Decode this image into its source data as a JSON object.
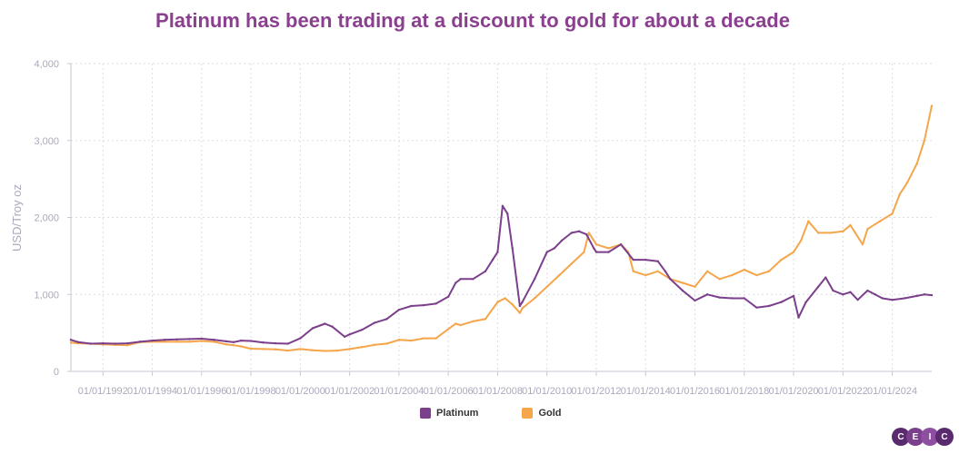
{
  "chart_data": {
    "type": "line",
    "title": "Platinum has been trading at a discount to gold for about a decade",
    "title_color": "#8B3F8F",
    "xlabel": "",
    "ylabel": "USD/Troy oz",
    "ylim": [
      0,
      4000
    ],
    "yticks": [
      0,
      1000,
      2000,
      3000,
      4000
    ],
    "ytick_labels": [
      "0",
      "1,000",
      "2,000",
      "3,000",
      "4,000"
    ],
    "xlim": [
      1990.7,
      2025.6
    ],
    "xticks": [
      1992,
      1994,
      1996,
      1998,
      2000,
      2002,
      2004,
      2006,
      2008,
      2010,
      2012,
      2014,
      2016,
      2018,
      2020,
      2022,
      2024
    ],
    "xtick_labels": [
      "01/01/1992",
      "01/01/1994",
      "01/01/1996",
      "01/01/1998",
      "01/01/2000",
      "01/01/2002",
      "01/01/2004",
      "01/01/2006",
      "01/01/2008",
      "01/01/2010",
      "01/01/2012",
      "01/01/2014",
      "01/01/2016",
      "01/01/2018",
      "01/01/2020",
      "01/01/2022",
      "01/01/2024"
    ],
    "grid": true,
    "series": [
      {
        "name": "Platinum",
        "color": "#7B3F8C",
        "x": [
          1990.7,
          1991.0,
          1991.5,
          1992.0,
          1992.5,
          1993.0,
          1993.5,
          1994.0,
          1994.5,
          1995.0,
          1995.5,
          1996.0,
          1996.5,
          1997.0,
          1997.3,
          1997.6,
          1998.0,
          1998.5,
          1999.0,
          1999.5,
          2000.0,
          2000.5,
          2001.0,
          2001.3,
          2001.8,
          2002.0,
          2002.5,
          2003.0,
          2003.5,
          2004.0,
          2004.5,
          2005.0,
          2005.5,
          2006.0,
          2006.3,
          2006.5,
          2007.0,
          2007.5,
          2007.8,
          2008.0,
          2008.2,
          2008.4,
          2008.6,
          2008.9,
          2009.0,
          2009.5,
          2010.0,
          2010.3,
          2010.6,
          2011.0,
          2011.3,
          2011.6,
          2011.9,
          2012.0,
          2012.5,
          2013.0,
          2013.5,
          2014.0,
          2014.5,
          2014.8,
          2015.0,
          2015.5,
          2016.0,
          2016.5,
          2017.0,
          2017.5,
          2018.0,
          2018.5,
          2019.0,
          2019.5,
          2020.0,
          2020.2,
          2020.5,
          2021.0,
          2021.3,
          2021.6,
          2022.0,
          2022.3,
          2022.6,
          2023.0,
          2023.3,
          2023.6,
          2024.0,
          2024.5,
          2025.0,
          2025.3,
          2025.6
        ],
        "values": [
          410,
          380,
          360,
          365,
          360,
          365,
          385,
          400,
          410,
          415,
          420,
          425,
          410,
          390,
          380,
          400,
          395,
          375,
          365,
          360,
          430,
          560,
          620,
          580,
          450,
          480,
          540,
          630,
          680,
          800,
          850,
          860,
          880,
          970,
          1150,
          1200,
          1200,
          1300,
          1450,
          1550,
          2150,
          2050,
          1600,
          850,
          900,
          1200,
          1550,
          1600,
          1700,
          1800,
          1820,
          1780,
          1600,
          1550,
          1550,
          1650,
          1450,
          1450,
          1430,
          1300,
          1200,
          1050,
          920,
          1000,
          960,
          950,
          950,
          830,
          850,
          900,
          980,
          700,
          900,
          1100,
          1220,
          1050,
          1000,
          1030,
          930,
          1050,
          1000,
          950,
          930,
          950,
          980,
          1000,
          990
        ]
      },
      {
        "name": "Gold",
        "color": "#F5A54A",
        "x": [
          1990.7,
          1991.0,
          1991.5,
          1992.0,
          1992.5,
          1993.0,
          1993.5,
          1994.0,
          1994.5,
          1995.0,
          1995.5,
          1996.0,
          1996.5,
          1997.0,
          1997.3,
          1997.6,
          1998.0,
          1998.5,
          1999.0,
          1999.5,
          2000.0,
          2000.5,
          2001.0,
          2001.5,
          2002.0,
          2002.5,
          2003.0,
          2003.5,
          2004.0,
          2004.5,
          2005.0,
          2005.5,
          2006.0,
          2006.3,
          2006.5,
          2007.0,
          2007.5,
          2008.0,
          2008.3,
          2008.6,
          2008.9,
          2009.0,
          2009.5,
          2010.0,
          2010.5,
          2011.0,
          2011.5,
          2011.7,
          2012.0,
          2012.5,
          2013.0,
          2013.3,
          2013.5,
          2014.0,
          2014.5,
          2015.0,
          2015.5,
          2016.0,
          2016.5,
          2017.0,
          2017.5,
          2018.0,
          2018.5,
          2019.0,
          2019.5,
          2020.0,
          2020.3,
          2020.6,
          2021.0,
          2021.5,
          2022.0,
          2022.3,
          2022.8,
          2023.0,
          2023.5,
          2024.0,
          2024.3,
          2024.6,
          2025.0,
          2025.3,
          2025.6
        ],
        "values": [
          375,
          365,
          360,
          350,
          345,
          340,
          380,
          385,
          385,
          385,
          385,
          395,
          385,
          350,
          340,
          325,
          295,
          290,
          285,
          270,
          290,
          275,
          265,
          270,
          290,
          315,
          345,
          360,
          410,
          400,
          430,
          430,
          550,
          620,
          600,
          650,
          680,
          900,
          950,
          870,
          760,
          820,
          950,
          1100,
          1250,
          1400,
          1550,
          1800,
          1650,
          1600,
          1650,
          1550,
          1300,
          1250,
          1300,
          1200,
          1150,
          1100,
          1300,
          1200,
          1250,
          1320,
          1250,
          1300,
          1450,
          1550,
          1700,
          1950,
          1800,
          1800,
          1820,
          1900,
          1650,
          1850,
          1950,
          2050,
          2300,
          2450,
          2700,
          3000,
          3450
        ]
      }
    ]
  },
  "logo_letters": [
    "C",
    "E",
    "I",
    "C"
  ],
  "colors": {
    "axis_text": "#A9A9BC",
    "grid": "#DDDDE4",
    "logo_circles": [
      "#5A2A6E",
      "#7B3F8C",
      "#8E4FA0",
      "#5A2A6E"
    ]
  }
}
